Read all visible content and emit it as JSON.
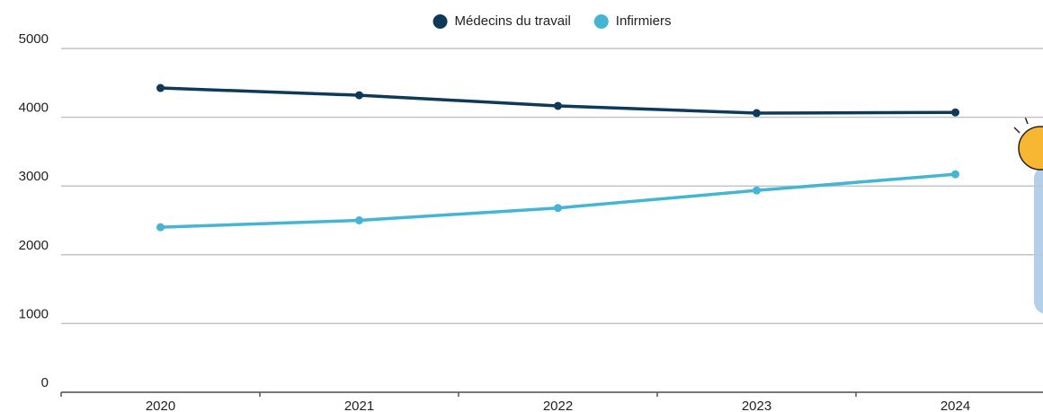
{
  "chart_data": {
    "type": "line",
    "categories": [
      "2020",
      "2021",
      "2022",
      "2023",
      "2024"
    ],
    "series": [
      {
        "name": "Médecins du travail",
        "color": "#0e3a5a",
        "values": [
          4425,
          4320,
          4165,
          4060,
          4070
        ]
      },
      {
        "name": "Infirmiers",
        "color": "#45b5d3",
        "values": [
          2400,
          2500,
          2680,
          2935,
          3170
        ]
      }
    ],
    "ylim": [
      0,
      5000
    ],
    "yticks": [
      0,
      1000,
      2000,
      3000,
      4000,
      5000
    ],
    "grid": true,
    "legend": "top"
  }
}
